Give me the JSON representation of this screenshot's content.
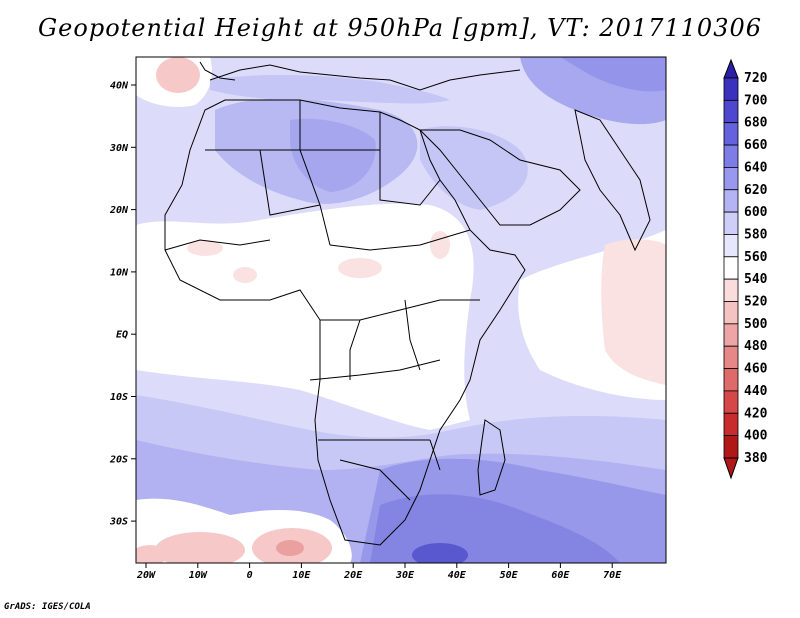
{
  "title": "Geopotential Height at 950hPa [gpm], VT: 2017110306",
  "footer": "GrADS: IGES/COLA",
  "map": {
    "lon_labels": [
      "20W",
      "10W",
      "0",
      "10E",
      "20E",
      "30E",
      "40E",
      "50E",
      "60E",
      "70E"
    ],
    "lat_labels": [
      "40N",
      "30N",
      "20N",
      "10N",
      "EQ",
      "10S",
      "20S",
      "30S"
    ],
    "colors": {
      "background_level_560": "#dcdcfa",
      "level_600": "#a8a8f0",
      "level_620": "#8c8ce6",
      "level_540": "#ffffff",
      "level_520": "#fbe2e2",
      "level_500": "#f6c8c8",
      "level_480": "#f0a8a8",
      "coastline": "#000000"
    }
  },
  "colorbar": {
    "levels": [
      "720",
      "700",
      "680",
      "660",
      "640",
      "620",
      "600",
      "580",
      "560",
      "540",
      "520",
      "500",
      "480",
      "460",
      "440",
      "420",
      "400",
      "380"
    ],
    "colors": [
      "#2a1fa8",
      "#3a32bf",
      "#4d48cf",
      "#6462dc",
      "#7e7ce6",
      "#9a98ee",
      "#b4b3f3",
      "#cfcef8",
      "#e6e6fc",
      "#ffffff",
      "#fbdcdc",
      "#f5c2c2",
      "#eda5a5",
      "#e68888",
      "#df6a6a",
      "#d64848",
      "#c82c2c",
      "#b01818"
    ]
  }
}
